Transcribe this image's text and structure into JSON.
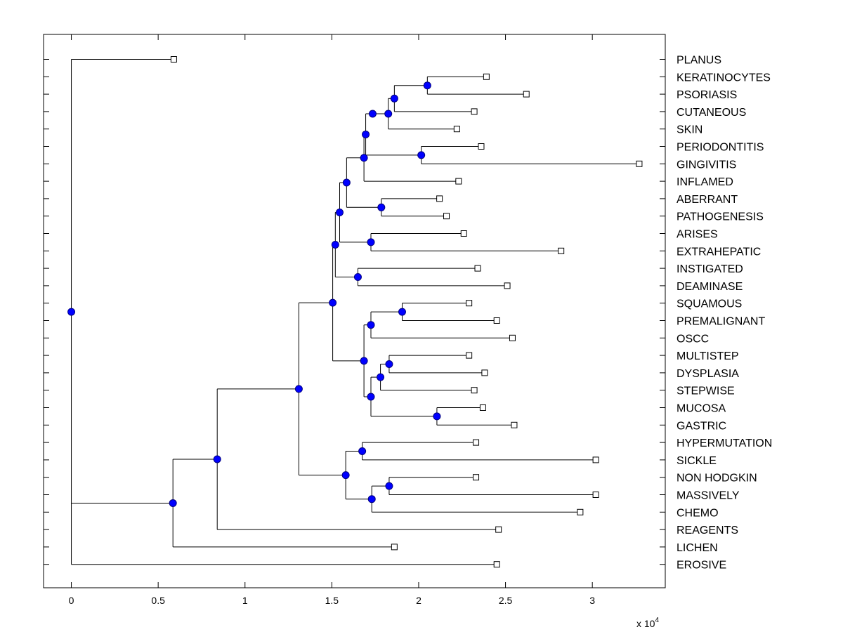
{
  "chart_data": {
    "type": "dendrogram",
    "title": "",
    "xlabel": "",
    "ylabel": "",
    "x_multiplier": "x 10",
    "x_multiplier_exponent": "4",
    "x_range": [
      -0.16,
      3.42
    ],
    "x_ticks": [
      0,
      0.5,
      1,
      1.5,
      2,
      2.5,
      3
    ],
    "x_tick_labels": [
      "0",
      "0.5",
      "1",
      "1.5",
      "2",
      "2.5",
      "3"
    ],
    "leaf_order": [
      "PLANUS",
      "KERATINOCYTES",
      "PSORIASIS",
      "CUTANEOUS",
      "SKIN",
      "PERIODONTITIS",
      "GINGIVITIS",
      "INFLAMED",
      "ABERRANT",
      "PATHOGENESIS",
      "ARISES",
      "EXTRAHEPATIC",
      "INSTIGATED",
      "DEAMINASE",
      "SQUAMOUS",
      "PREMALIGNANT",
      "OSCC",
      "MULTISTEP",
      "DYSPLASIA",
      "STEPWISE",
      "MUCOSA",
      "GASTRIC",
      "HYPERMUTATION",
      "SICKLE",
      "NON HODGKIN",
      "MASSIVELY",
      "CHEMO",
      "REAGENTS",
      "LICHEN",
      "EROSIVE"
    ],
    "leaf_values": {
      "PLANUS": 0.59,
      "KERATINOCYTES": 2.39,
      "PSORIASIS": 2.62,
      "CUTANEOUS": 2.32,
      "SKIN": 2.22,
      "PERIODONTITIS": 2.36,
      "GINGIVITIS": 3.27,
      "INFLAMED": 2.23,
      "ABERRANT": 2.12,
      "PATHOGENESIS": 2.16,
      "ARISES": 2.26,
      "EXTRAHEPATIC": 2.82,
      "INSTIGATED": 2.34,
      "DEAMINASE": 2.51,
      "SQUAMOUS": 2.29,
      "PREMALIGNANT": 2.45,
      "OSCC": 2.54,
      "MULTISTEP": 2.29,
      "DYSPLASIA": 2.38,
      "STEPWISE": 2.32,
      "MUCOSA": 2.37,
      "GASTRIC": 2.55,
      "HYPERMUTATION": 2.33,
      "SICKLE": 3.02,
      "NON HODGKIN": 2.33,
      "MASSIVELY": 3.02,
      "CHEMO": 2.93,
      "REAGENTS": 2.46,
      "LICHEN": 1.86,
      "EROSIVE": 2.45
    },
    "tree": {
      "v": 0,
      "children": [
        {
          "leaf": "PLANUS"
        },
        {
          "v": 0.585,
          "children": [
            {
              "v": 0.84,
              "children": [
                {
                  "v": 1.31,
                  "children": [
                    {
                      "v": 1.505,
                      "children": [
                        {
                          "v": 1.52,
                          "children": [
                            {
                              "v": 1.545,
                              "children": [
                                {
                                  "v": 1.585,
                                  "children": [
                                    {
                                      "v": 1.685,
                                      "children": [
                                        {
                                          "v": 1.695,
                                          "children": [
                                            {
                                              "v": 1.735,
                                              "children": [
                                                {
                                                  "v": 1.825,
                                                  "children": [
                                                    {
                                                      "v": 1.86,
                                                      "children": [
                                                        {
                                                          "v": 2.05,
                                                          "children": [
                                                            {
                                                              "leaf": "KERATINOCYTES"
                                                            },
                                                            {
                                                              "leaf": "PSORIASIS"
                                                            }
                                                          ]
                                                        },
                                                        {
                                                          "leaf": "CUTANEOUS"
                                                        }
                                                      ]
                                                    },
                                                    {
                                                      "leaf": "SKIN"
                                                    }
                                                  ]
                                                }
                                              ]
                                            },
                                            {
                                              "v": 2.015,
                                              "children": [
                                                {
                                                  "leaf": "PERIODONTITIS"
                                                },
                                                {
                                                  "leaf": "GINGIVITIS"
                                                }
                                              ]
                                            }
                                          ]
                                        },
                                        {
                                          "leaf": "INFLAMED"
                                        }
                                      ]
                                    },
                                    {
                                      "v": 1.785,
                                      "children": [
                                        {
                                          "leaf": "ABERRANT"
                                        },
                                        {
                                          "leaf": "PATHOGENESIS"
                                        }
                                      ]
                                    }
                                  ]
                                },
                                {
                                  "v": 1.725,
                                  "children": [
                                    {
                                      "leaf": "ARISES"
                                    },
                                    {
                                      "leaf": "EXTRAHEPATIC"
                                    }
                                  ]
                                }
                              ]
                            },
                            {
                              "v": 1.65,
                              "children": [
                                {
                                  "leaf": "INSTIGATED"
                                },
                                {
                                  "leaf": "DEAMINASE"
                                }
                              ]
                            }
                          ]
                        },
                        {
                          "v": 1.685,
                          "children": [
                            {
                              "v": 1.725,
                              "children": [
                                {
                                  "v": 1.905,
                                  "children": [
                                    {
                                      "leaf": "SQUAMOUS"
                                    },
                                    {
                                      "leaf": "PREMALIGNANT"
                                    }
                                  ]
                                },
                                {
                                  "leaf": "OSCC"
                                }
                              ]
                            },
                            {
                              "v": 1.725,
                              "children": [
                                {
                                  "v": 1.78,
                                  "children": [
                                    {
                                      "v": 1.83,
                                      "children": [
                                        {
                                          "leaf": "MULTISTEP"
                                        },
                                        {
                                          "leaf": "DYSPLASIA"
                                        }
                                      ]
                                    },
                                    {
                                      "leaf": "STEPWISE"
                                    }
                                  ]
                                },
                                {
                                  "v": 2.105,
                                  "children": [
                                    {
                                      "leaf": "MUCOSA"
                                    },
                                    {
                                      "leaf": "GASTRIC"
                                    }
                                  ]
                                }
                              ]
                            }
                          ]
                        }
                      ]
                    },
                    {
                      "v": 1.58,
                      "children": [
                        {
                          "v": 1.675,
                          "children": [
                            {
                              "leaf": "HYPERMUTATION"
                            },
                            {
                              "leaf": "SICKLE"
                            }
                          ]
                        },
                        {
                          "v": 1.73,
                          "children": [
                            {
                              "v": 1.83,
                              "children": [
                                {
                                  "leaf": "NON HODGKIN"
                                },
                                {
                                  "leaf": "MASSIVELY"
                                }
                              ]
                            },
                            {
                              "leaf": "CHEMO"
                            }
                          ]
                        }
                      ]
                    }
                  ]
                },
                {
                  "leaf": "REAGENTS"
                }
              ]
            },
            {
              "leaf": "LICHEN"
            }
          ]
        },
        {
          "leaf": "EROSIVE"
        }
      ]
    },
    "colors": {
      "node_fill": "#0000ff",
      "node_stroke": "#000080",
      "line": "#000000",
      "leaf_fill": "#ffffff"
    }
  }
}
